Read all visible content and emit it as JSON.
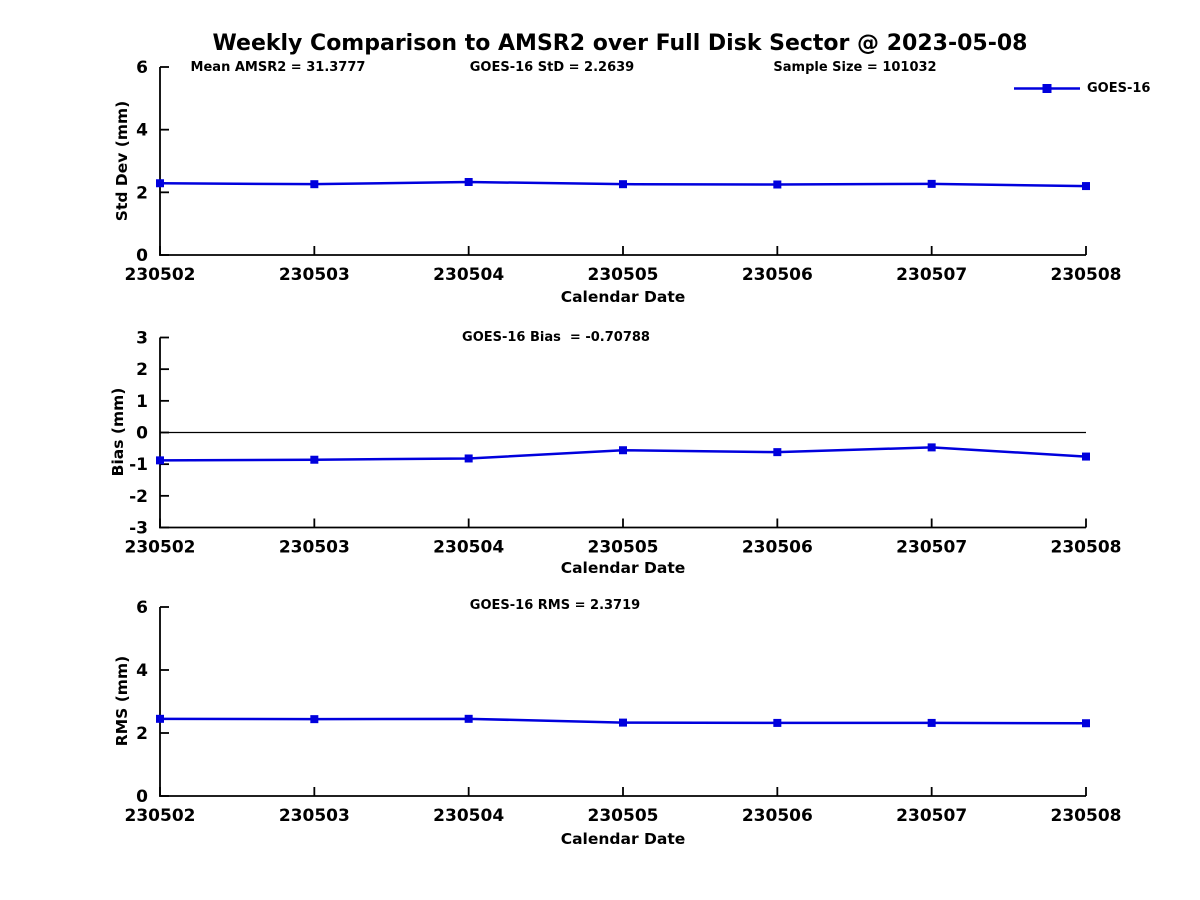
{
  "title": "Weekly Comparison to AMSR2 over Full Disk Sector @ 2023-05-08",
  "legend": {
    "label": "GOES-16",
    "marker": "square-on-line-icon"
  },
  "colors": {
    "line": "#0000dd",
    "axis": "#000000",
    "background": "#ffffff"
  },
  "chart_data": [
    {
      "id": "std-dev",
      "type": "line",
      "annotations": [
        "Mean AMSR2 = 31.3777",
        "GOES-16 StD = 2.2639",
        "Sample Size = 101032"
      ],
      "x": [
        "230502",
        "230503",
        "230504",
        "230505",
        "230506",
        "230507",
        "230508"
      ],
      "series": [
        {
          "name": "GOES-16",
          "values": [
            2.29,
            2.26,
            2.33,
            2.26,
            2.25,
            2.27,
            2.2
          ]
        }
      ],
      "xlabel": "Calendar Date",
      "ylabel": "Std Dev (mm)",
      "ylim": [
        0,
        6
      ],
      "yticks": [
        0,
        2,
        4,
        6
      ],
      "zero_line": false,
      "grid": false,
      "legend_position": "top-right"
    },
    {
      "id": "bias",
      "type": "line",
      "annotations": [
        "GOES-16 Bias  = -0.70788"
      ],
      "x": [
        "230502",
        "230503",
        "230504",
        "230505",
        "230506",
        "230507",
        "230508"
      ],
      "series": [
        {
          "name": "GOES-16",
          "values": [
            -0.88,
            -0.86,
            -0.82,
            -0.56,
            -0.62,
            -0.47,
            -0.76
          ]
        }
      ],
      "xlabel": "Calendar Date",
      "ylabel": "Bias (mm)",
      "ylim": [
        -3,
        3
      ],
      "yticks": [
        -3,
        -2,
        -1,
        0,
        1,
        2,
        3
      ],
      "zero_line": true,
      "grid": false
    },
    {
      "id": "rms",
      "type": "line",
      "annotations": [
        "GOES-16 RMS = 2.3719"
      ],
      "x": [
        "230502",
        "230503",
        "230504",
        "230505",
        "230506",
        "230507",
        "230508"
      ],
      "series": [
        {
          "name": "GOES-16",
          "values": [
            2.45,
            2.44,
            2.45,
            2.33,
            2.32,
            2.32,
            2.31
          ]
        }
      ],
      "xlabel": "Calendar Date",
      "ylabel": "RMS (mm)",
      "ylim": [
        0,
        6
      ],
      "yticks": [
        0,
        2,
        4,
        6
      ],
      "zero_line": false,
      "grid": false
    }
  ]
}
